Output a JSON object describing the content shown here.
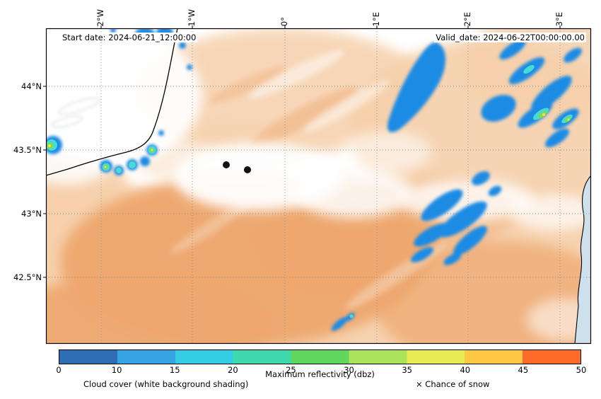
{
  "map": {
    "start_date_label": "Start date: 2024-06-21_12:00:00",
    "valid_date_label": "Valid_date: 2024-06-22T00:00:00.00",
    "lon_ticks": [
      "2°W",
      "1°W",
      "0°",
      "1°E",
      "2°E",
      "3°E"
    ],
    "lat_ticks": [
      "44°N",
      "43.5°N",
      "43°N",
      "42.5°N"
    ],
    "station_markers": [
      {
        "lon": -0.64,
        "lat": 43.38
      },
      {
        "lon": -0.41,
        "lat": 43.34
      }
    ]
  },
  "colorbar": {
    "label": "Maximum reflectivity (dbz)",
    "ticks": [
      "0",
      "10",
      "15",
      "20",
      "25",
      "30",
      "35",
      "40",
      "45",
      "50"
    ],
    "range": [
      0,
      50
    ],
    "colors": [
      "#2e6db4",
      "#36a3e3",
      "#35cde4",
      "#3ed9ac",
      "#62d75e",
      "#a9e25b",
      "#e8ed55",
      "#ffc843",
      "#fb6a28"
    ]
  },
  "captions": {
    "cloud_cover": "Cloud cover (white background shading)",
    "chance_of_snow": "× Chance of snow"
  },
  "palette": {
    "cloud_light": "#f6d0ab",
    "cloud_dense": "#eea76e",
    "reflectivity_patch": "#1e8be4",
    "reflectivity_core_cyan": "#45dcd5",
    "reflectivity_core_green": "#7ade4d",
    "reflectivity_core_yellow": "#ffe13e",
    "sea": "#cfe0ed"
  }
}
